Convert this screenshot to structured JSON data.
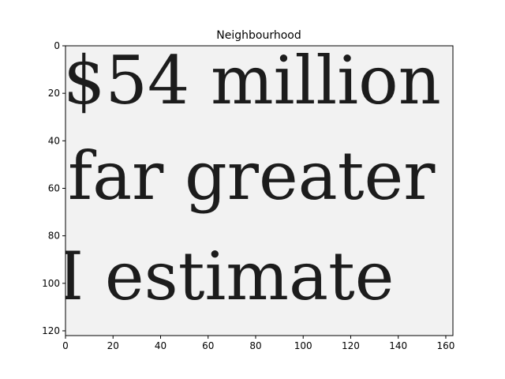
{
  "figure": {
    "title": "Neighbourhood",
    "image_text_lines": [
      "$54 million",
      "far greater",
      "I estimate"
    ],
    "x_ticks": [
      0,
      20,
      40,
      60,
      80,
      100,
      120,
      140,
      160
    ],
    "y_ticks": [
      0,
      20,
      40,
      60,
      80,
      100,
      120
    ],
    "x_range": [
      0,
      163
    ],
    "y_range": [
      0,
      122
    ],
    "colors": {
      "background": "#f2f2f2",
      "ink": "#1c1c1c",
      "axis": "#000000"
    }
  }
}
